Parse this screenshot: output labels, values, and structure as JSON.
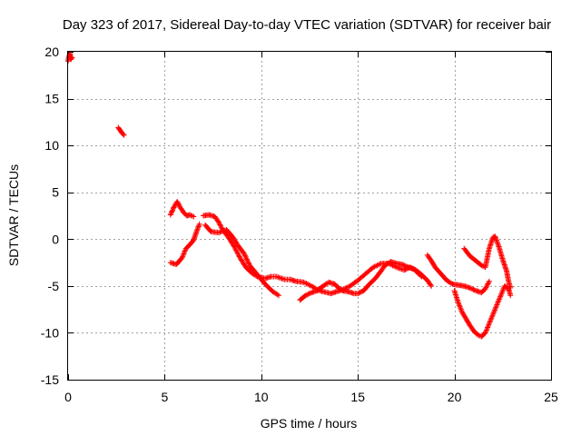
{
  "chart_data": {
    "type": "scatter",
    "title": "Day 323 of 2017, Sidereal Day-to-day VTEC variation (SDTVAR) for receiver bair",
    "xlabel": "GPS time / hours",
    "ylabel": "SDTVAR / TECUs",
    "xlim": [
      0,
      25
    ],
    "ylim": [
      -15,
      20
    ],
    "xticks": [
      0,
      5,
      10,
      15,
      20,
      25
    ],
    "yticks": [
      -15,
      -10,
      -5,
      0,
      5,
      10,
      15,
      20
    ],
    "xtick_labels": [
      "0",
      "5",
      "10",
      "15",
      "20",
      "25"
    ],
    "ytick_labels": [
      "-15",
      "-10",
      "-5",
      "0",
      "5",
      "10",
      "15",
      "20"
    ],
    "grid": true,
    "legend": "none",
    "series": [
      {
        "name": "SDTVAR",
        "color": "#ff0000",
        "marker": "plus",
        "polylines": [
          [
            [
              0.0,
              19.0
            ],
            [
              0.05,
              19.5
            ],
            [
              0.1,
              19.8
            ],
            [
              0.15,
              19.2
            ],
            [
              0.2,
              19.4
            ]
          ],
          [
            [
              2.6,
              11.9
            ],
            [
              2.7,
              11.6
            ],
            [
              2.8,
              11.3
            ],
            [
              2.9,
              11.1
            ]
          ],
          [
            [
              5.3,
              2.6
            ],
            [
              5.5,
              3.5
            ],
            [
              5.65,
              4.0
            ],
            [
              5.8,
              3.4
            ],
            [
              6.0,
              2.8
            ],
            [
              6.15,
              2.5
            ],
            [
              6.3,
              2.6
            ],
            [
              6.5,
              2.4
            ]
          ],
          [
            [
              5.3,
              -2.5
            ],
            [
              5.6,
              -2.7
            ],
            [
              5.9,
              -2.0
            ],
            [
              6.1,
              -1.0
            ],
            [
              6.3,
              -0.6
            ],
            [
              6.5,
              -0.1
            ],
            [
              6.65,
              0.8
            ],
            [
              6.8,
              1.6
            ]
          ],
          [
            [
              7.0,
              2.5
            ],
            [
              7.3,
              2.6
            ],
            [
              7.6,
              2.4
            ],
            [
              7.8,
              1.8
            ],
            [
              8.0,
              1.0
            ],
            [
              8.3,
              0.2
            ],
            [
              8.6,
              -0.8
            ],
            [
              8.9,
              -2.0
            ],
            [
              9.2,
              -3.0
            ],
            [
              9.5,
              -3.6
            ],
            [
              9.8,
              -4.0
            ],
            [
              10.2,
              -4.2
            ],
            [
              10.5,
              -4.0
            ],
            [
              10.8,
              -4.0
            ],
            [
              11.2,
              -4.3
            ],
            [
              11.5,
              -4.3
            ],
            [
              11.8,
              -4.5
            ],
            [
              12.2,
              -4.6
            ],
            [
              12.6,
              -5.0
            ],
            [
              12.9,
              -5.4
            ],
            [
              13.2,
              -5.6
            ],
            [
              13.6,
              -5.8
            ],
            [
              13.9,
              -5.6
            ],
            [
              14.2,
              -5.4
            ],
            [
              14.6,
              -5.0
            ],
            [
              15.0,
              -4.4
            ],
            [
              15.4,
              -3.7
            ],
            [
              15.8,
              -3.0
            ],
            [
              16.2,
              -2.6
            ],
            [
              16.6,
              -2.6
            ],
            [
              17.0,
              -3.0
            ],
            [
              17.4,
              -3.3
            ],
            [
              17.7,
              -3.0
            ],
            [
              18.0,
              -3.3
            ],
            [
              18.3,
              -3.8
            ],
            [
              18.6,
              -4.4
            ],
            [
              18.8,
              -5.0
            ]
          ],
          [
            [
              7.1,
              1.5
            ],
            [
              7.4,
              0.8
            ],
            [
              7.8,
              0.7
            ],
            [
              8.2,
              1.0
            ],
            [
              8.5,
              0.3
            ],
            [
              8.8,
              -0.7
            ],
            [
              9.1,
              -1.5
            ],
            [
              9.4,
              -2.8
            ],
            [
              9.8,
              -3.8
            ],
            [
              10.2,
              -4.8
            ],
            [
              10.6,
              -5.6
            ],
            [
              10.9,
              -6.0
            ]
          ],
          [
            [
              12.0,
              -6.5
            ],
            [
              12.3,
              -6.0
            ],
            [
              12.6,
              -5.7
            ],
            [
              12.9,
              -5.5
            ],
            [
              13.2,
              -5.0
            ],
            [
              13.5,
              -4.6
            ],
            [
              13.8,
              -4.8
            ],
            [
              14.0,
              -5.2
            ],
            [
              14.2,
              -5.5
            ],
            [
              14.5,
              -5.6
            ],
            [
              14.8,
              -5.8
            ],
            [
              15.0,
              -5.8
            ],
            [
              15.3,
              -5.5
            ],
            [
              15.6,
              -4.8
            ],
            [
              15.9,
              -4.2
            ],
            [
              16.2,
              -3.4
            ],
            [
              16.4,
              -2.8
            ],
            [
              16.7,
              -2.4
            ],
            [
              17.0,
              -2.6
            ],
            [
              17.3,
              -2.7
            ],
            [
              17.6,
              -3.0
            ],
            [
              17.9,
              -3.2
            ],
            [
              18.1,
              -3.6
            ],
            [
              18.3,
              -4.0
            ]
          ],
          [
            [
              18.6,
              -1.7
            ],
            [
              18.8,
              -2.3
            ],
            [
              19.0,
              -3.0
            ],
            [
              19.3,
              -3.7
            ],
            [
              19.6,
              -4.4
            ],
            [
              19.9,
              -4.8
            ],
            [
              20.2,
              -4.9
            ],
            [
              20.5,
              -5.0
            ],
            [
              20.8,
              -5.2
            ],
            [
              21.1,
              -5.5
            ],
            [
              21.4,
              -5.7
            ],
            [
              21.6,
              -5.3
            ],
            [
              21.8,
              -4.5
            ]
          ],
          [
            [
              20.0,
              -5.5
            ],
            [
              20.2,
              -6.8
            ],
            [
              20.4,
              -7.8
            ],
            [
              20.6,
              -8.5
            ],
            [
              20.8,
              -9.2
            ],
            [
              21.0,
              -9.8
            ],
            [
              21.2,
              -10.2
            ],
            [
              21.4,
              -10.4
            ],
            [
              21.6,
              -10.0
            ],
            [
              21.8,
              -9.0
            ],
            [
              22.0,
              -8.0
            ],
            [
              22.2,
              -7.0
            ],
            [
              22.4,
              -6.0
            ],
            [
              22.6,
              -5.0
            ],
            [
              22.8,
              -5.3
            ],
            [
              22.9,
              -6.0
            ]
          ],
          [
            [
              20.5,
              -1.0
            ],
            [
              20.8,
              -1.8
            ],
            [
              21.1,
              -2.3
            ],
            [
              21.4,
              -2.8
            ],
            [
              21.6,
              -3.0
            ],
            [
              21.8,
              -1.0
            ],
            [
              22.0,
              0.2
            ],
            [
              22.1,
              0.3
            ],
            [
              22.3,
              -0.8
            ],
            [
              22.5,
              -2.2
            ],
            [
              22.7,
              -3.4
            ],
            [
              22.8,
              -4.5
            ],
            [
              22.9,
              -5.2
            ]
          ]
        ]
      }
    ]
  }
}
